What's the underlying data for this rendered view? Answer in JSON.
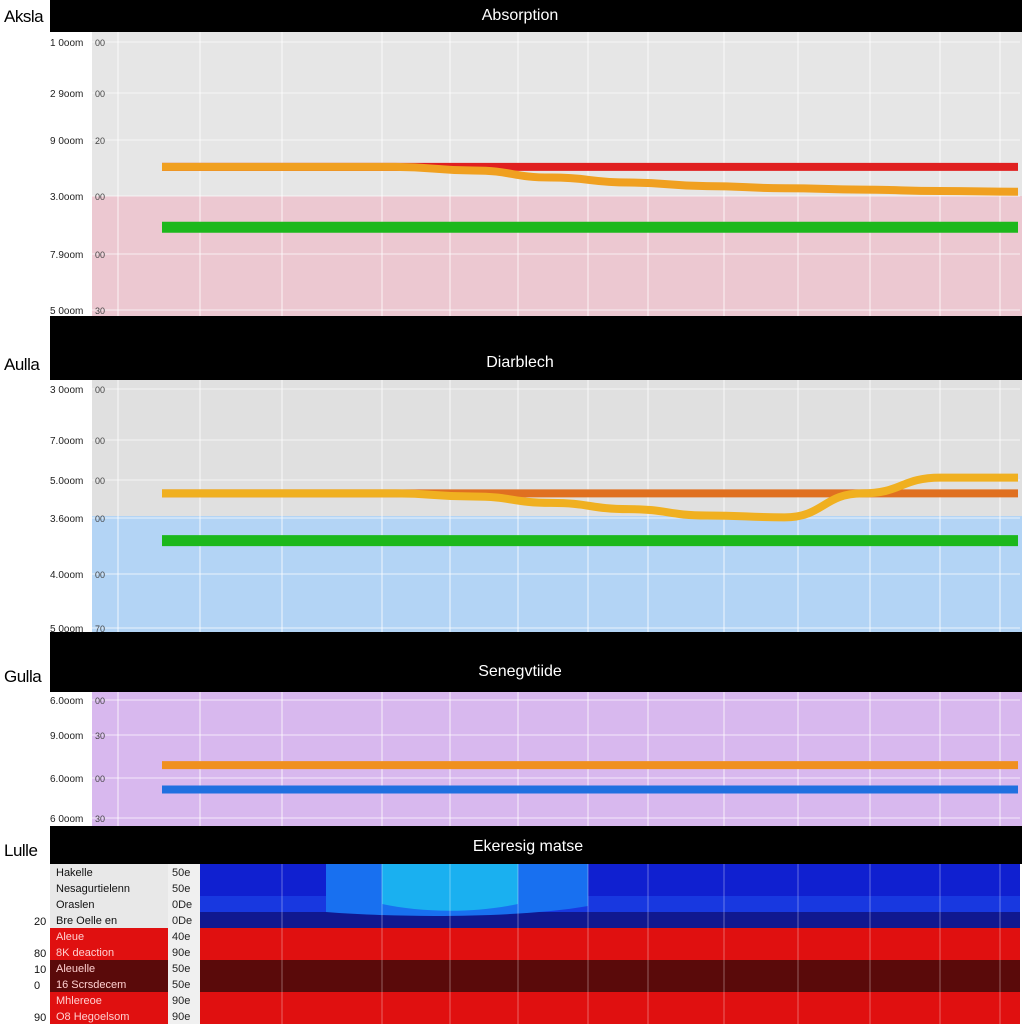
{
  "chart_data": [
    {
      "type": "line",
      "side_label": "Aksla",
      "title": "Absorption",
      "background": "#e6e6e6",
      "band_color": "#ecc8d1",
      "ticks": [
        {
          "label": "1 0oom",
          "sec": "00"
        },
        {
          "label": "2 9oom",
          "sec": "00"
        },
        {
          "label": "9 0oom",
          "sec": "20"
        },
        {
          "label": "3.0oom",
          "sec": "00"
        },
        {
          "label": "7.9oom",
          "sec": "00"
        },
        {
          "label": "5 0oom",
          "sec": "30"
        }
      ],
      "series": [
        {
          "color": "#e02020",
          "values": [
            2.9,
            2.9,
            2.9,
            2.9,
            2.9,
            2.9,
            2.9,
            2.9,
            2.9,
            2.9,
            2.9,
            2.9
          ]
        },
        {
          "color": "#f0a020",
          "values": [
            2.9,
            2.9,
            2.9,
            2.9,
            2.95,
            3.05,
            3.12,
            3.17,
            3.2,
            3.22,
            3.24,
            3.25
          ]
        },
        {
          "color": "#1cb81c",
          "values": [
            3.75,
            3.75,
            3.75,
            3.75,
            3.75,
            3.75,
            3.75,
            3.75,
            3.75,
            3.75,
            3.75,
            3.75
          ]
        }
      ]
    },
    {
      "type": "line",
      "side_label": "Aulla",
      "title": "Diarblech",
      "background": "#e0e0e0",
      "band_color": "#b3d4f5",
      "ticks": [
        {
          "label": "3 0oom",
          "sec": "00"
        },
        {
          "label": "7.0oom",
          "sec": "00"
        },
        {
          "label": "5.0oom",
          "sec": "00"
        },
        {
          "label": "3.6oom",
          "sec": "00"
        },
        {
          "label": "4.0oom",
          "sec": "00"
        },
        {
          "label": "5 0oom",
          "sec": "70"
        }
      ],
      "series": [
        {
          "color": "#e07020",
          "values": [
            2.8,
            2.8,
            2.8,
            2.8,
            2.8,
            2.8,
            2.8,
            2.8,
            2.8,
            2.8,
            2.8,
            2.8
          ]
        },
        {
          "color": "#f0b020",
          "values": [
            2.8,
            2.8,
            2.8,
            2.8,
            2.85,
            2.95,
            3.05,
            3.15,
            3.18,
            2.8,
            2.55,
            2.55
          ]
        },
        {
          "color": "#1cb81c",
          "values": [
            3.55,
            3.55,
            3.55,
            3.55,
            3.55,
            3.55,
            3.55,
            3.55,
            3.55,
            3.55,
            3.55,
            3.55
          ]
        }
      ]
    },
    {
      "type": "line",
      "side_label": "Gulla",
      "title": "Senegvtiide",
      "background": "#d8b8ee",
      "band_color": "#d8b8ee",
      "ticks": [
        {
          "label": "6.0oom",
          "sec": "00"
        },
        {
          "label": "9.0oom",
          "sec": "30"
        },
        {
          "label": "6.0oom",
          "sec": "00"
        },
        {
          "label": "6 0oom",
          "sec": "30"
        }
      ],
      "series": [
        {
          "color": "#f09020",
          "values": [
            2.2,
            2.2,
            2.2,
            2.2,
            2.2,
            2.2,
            2.2,
            2.2,
            2.2,
            2.2,
            2.2,
            2.2
          ]
        },
        {
          "color": "#2070e0",
          "values": [
            2.6,
            2.6,
            2.6,
            2.6,
            2.6,
            2.6,
            2.6,
            2.6,
            2.6,
            2.6,
            2.6,
            2.6
          ]
        }
      ]
    },
    {
      "type": "heatmap",
      "side_label": "Lulle",
      "title": "Ekeresig matse",
      "rows": [
        {
          "num": "",
          "label": "Hakelle",
          "value": "50e",
          "color": "#1020d0",
          "fill": "#e8e8e8",
          "text": "#111"
        },
        {
          "num": "",
          "label": "Nesagurtielenn",
          "value": "50e",
          "color": "#1020d0",
          "fill": "#e8e8e8",
          "text": "#111"
        },
        {
          "num": "",
          "label": "Oraslen",
          "value": "0De",
          "color": "#1838e0",
          "fill": "#e8e8e8",
          "text": "#111"
        },
        {
          "num": "20",
          "label": "Bre Oelle en",
          "value": "0De",
          "color": "#101890",
          "fill": "#e8e8e8",
          "text": "#111"
        },
        {
          "num": "",
          "label": "Aleue",
          "value": "40e",
          "color": "#e01010",
          "fill": "#e01010",
          "text": "#ffd0d0"
        },
        {
          "num": "80",
          "label": "8K deaction",
          "value": "90e",
          "color": "#e01010",
          "fill": "#e01010",
          "text": "#ffd0d0"
        },
        {
          "num": "10",
          "label": "Aleuelle",
          "value": "50e",
          "color": "#5a0a0a",
          "fill": "#5a0a0a",
          "text": "#ffd0d0"
        },
        {
          "num": "0",
          "label": "16 Scrsdecem",
          "value": "50e",
          "color": "#5a0a0a",
          "fill": "#5a0a0a",
          "text": "#ffd0d0"
        },
        {
          "num": "",
          "label": "Mhlereoe",
          "value": "90e",
          "color": "#e01010",
          "fill": "#e01010",
          "text": "#ffd0d0"
        },
        {
          "num": "90",
          "label": "O8 Hegoelsom",
          "value": "90e",
          "color": "#e01010",
          "fill": "#e01010",
          "text": "#ffd0d0"
        }
      ],
      "highlight_color": "#1ab0f0"
    }
  ]
}
